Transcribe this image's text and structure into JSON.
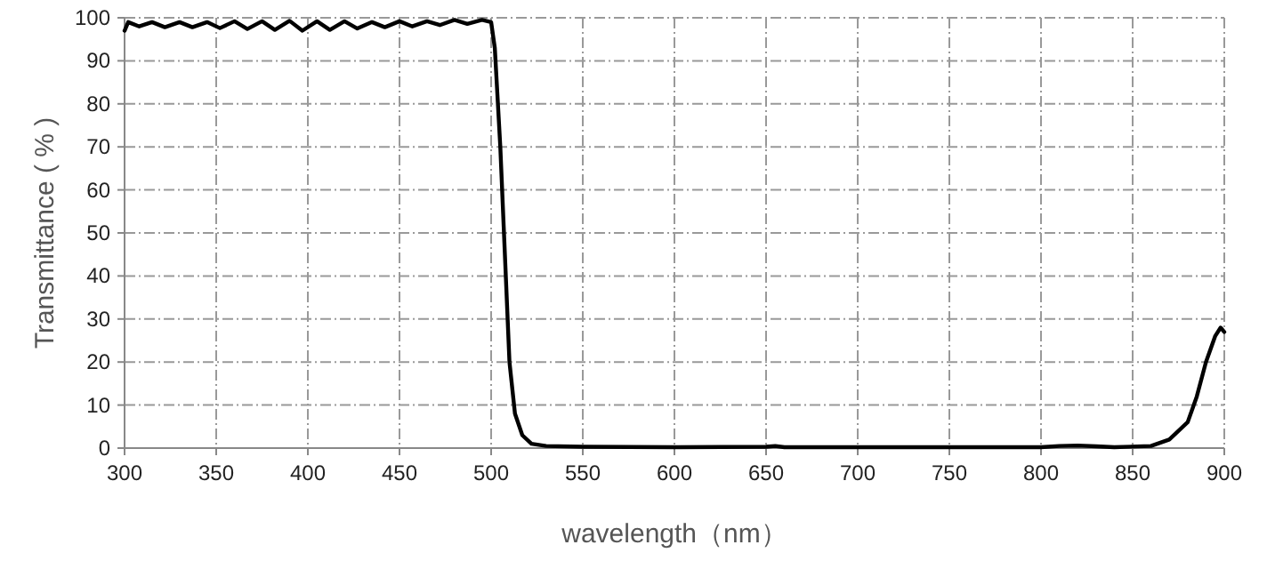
{
  "chart_data": {
    "type": "line",
    "xlabel": "wavelength（nm）",
    "ylabel": "Transmittance ( % )",
    "xlim": [
      300,
      900
    ],
    "ylim": [
      0,
      100
    ],
    "xticks": [
      300,
      350,
      400,
      450,
      500,
      550,
      600,
      650,
      700,
      750,
      800,
      850,
      900
    ],
    "yticks": [
      0,
      10,
      20,
      30,
      40,
      50,
      60,
      70,
      80,
      90,
      100
    ],
    "grid": true,
    "marker": "none",
    "line_style": "solid",
    "series": [
      {
        "color": "#000000",
        "x": [
          300,
          302,
          308,
          315,
          322,
          330,
          337,
          345,
          352,
          360,
          367,
          375,
          382,
          390,
          397,
          405,
          412,
          420,
          427,
          435,
          442,
          450,
          457,
          465,
          472,
          480,
          487,
          495,
          500,
          502,
          505,
          508,
          510,
          513,
          517,
          522,
          530,
          550,
          600,
          650,
          655,
          660,
          700,
          800,
          810,
          820,
          830,
          840,
          860,
          870,
          880,
          885,
          890,
          895,
          898,
          900
        ],
        "values": [
          97,
          99,
          98,
          99,
          97.8,
          99,
          97.8,
          99,
          97.6,
          99.2,
          97.4,
          99.2,
          97.2,
          99.3,
          97,
          99.2,
          97.2,
          99.2,
          97.5,
          99,
          97.8,
          99.2,
          98,
          99.2,
          98.3,
          99.5,
          98.6,
          99.5,
          99,
          93,
          70,
          40,
          20,
          8,
          3,
          1,
          0.5,
          0.3,
          0.2,
          0.3,
          0.5,
          0.2,
          0.2,
          0.2,
          0.5,
          0.6,
          0.4,
          0.2,
          0.5,
          2,
          6,
          12,
          20,
          26,
          28,
          27
        ]
      }
    ]
  }
}
